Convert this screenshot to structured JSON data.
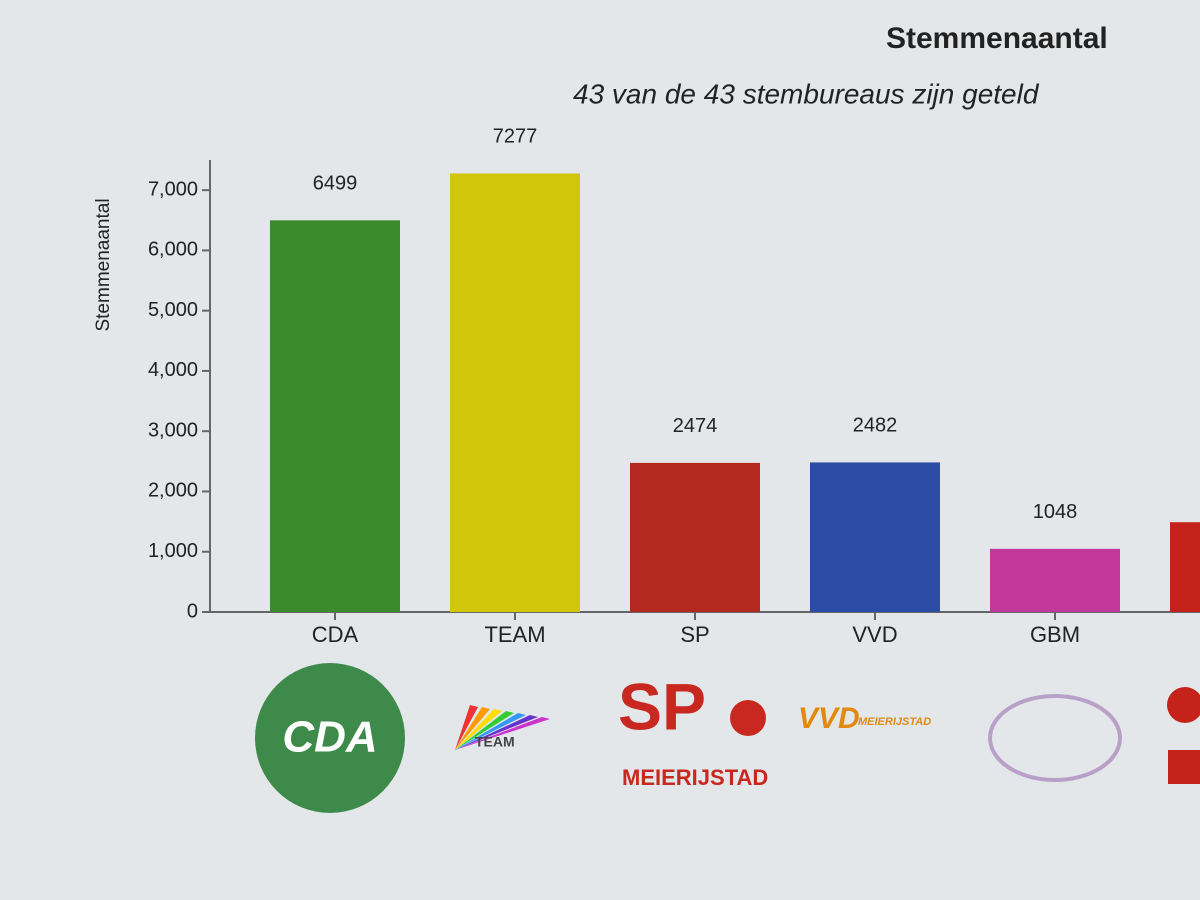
{
  "chart_data": {
    "type": "bar",
    "title": "Stemmenaantal",
    "subtitle": "43 van de 43 stembureaus zijn geteld",
    "y_label": "Stemmenaantal",
    "categories": [
      "CDA",
      "TEAM",
      "SP",
      "VVD",
      "GBM",
      null
    ],
    "values": [
      6499,
      7277,
      2474,
      2482,
      1048,
      1490
    ],
    "colors": [
      "#3b8a2c",
      "#d2c60a",
      "#b3281f",
      "#2c4ca6",
      "#c1389a",
      "#c4221b"
    ],
    "ylim": [
      0,
      7500
    ],
    "yticks": [
      0,
      {
        "value": 1000,
        "label": "1,000"
      },
      {
        "value": 2000,
        "label": "2,000"
      },
      {
        "value": 3000,
        "label": "3,000"
      },
      {
        "value": 4000,
        "label": "4,000"
      },
      {
        "value": 5000,
        "label": "5,000"
      },
      {
        "value": 6000,
        "label": "6,000"
      },
      {
        "value": 7000,
        "label": "7,000"
      }
    ],
    "grid": false,
    "logos": [
      {
        "label": "CDA"
      },
      {
        "label": "TEAM"
      },
      {
        "label": "SP",
        "sub": "MEIERIJSTAD"
      },
      {
        "label": "VVD",
        "sub": "MEIERIJSTAD"
      }
    ]
  }
}
